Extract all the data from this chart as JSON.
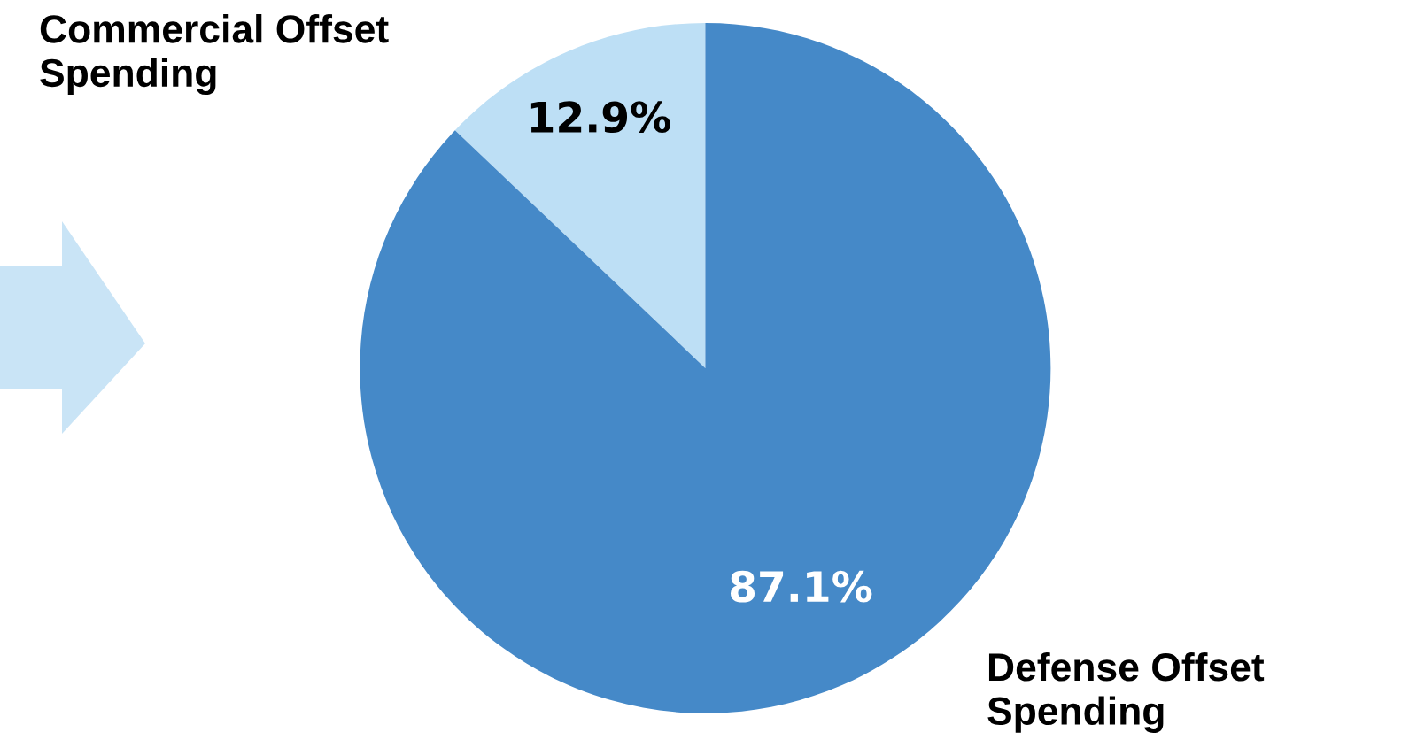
{
  "chart_data": {
    "type": "pie",
    "categories": [
      "Commercial Offset\nSpending",
      "Defense Offset\nSpending"
    ],
    "values": [
      12.9,
      87.1
    ],
    "colors": [
      "#bddff5",
      "#4589c8"
    ],
    "value_labels": [
      "12.9%",
      "87.1%"
    ]
  }
}
